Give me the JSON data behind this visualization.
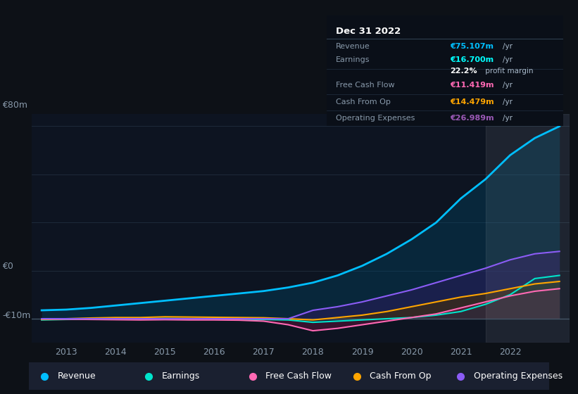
{
  "bg_color": "#0d1117",
  "chart_bg": "#0d1421",
  "grid_color": "#1e2a3a",
  "title_box": {
    "date": "Dec 31 2022",
    "rows": [
      {
        "label": "Revenue",
        "value": "€75.107m",
        "unit": "/yr",
        "color": "#00bfff"
      },
      {
        "label": "Earnings",
        "value": "€16.700m",
        "unit": "/yr",
        "color": "#00ffff"
      },
      {
        "label": "",
        "value": "22.2%",
        "unit": " profit margin",
        "color": "#ffffff"
      },
      {
        "label": "Free Cash Flow",
        "value": "€11.419m",
        "unit": "/yr",
        "color": "#ff69b4"
      },
      {
        "label": "Cash From Op",
        "value": "€14.479m",
        "unit": "/yr",
        "color": "#ffa500"
      },
      {
        "label": "Operating Expenses",
        "value": "€26.989m",
        "unit": "/yr",
        "color": "#9b59b6"
      }
    ]
  },
  "years": [
    2012.5,
    2013,
    2013.5,
    2014,
    2014.5,
    2015,
    2015.5,
    2016,
    2016.5,
    2017,
    2017.5,
    2018,
    2018.5,
    2019,
    2019.5,
    2020,
    2020.5,
    2021,
    2021.5,
    2022,
    2022.5,
    2023
  ],
  "revenue": [
    3.5,
    3.8,
    4.5,
    5.5,
    6.5,
    7.5,
    8.5,
    9.5,
    10.5,
    11.5,
    13,
    15,
    18,
    22,
    27,
    33,
    40,
    50,
    58,
    68,
    75.1,
    80
  ],
  "earnings": [
    -0.5,
    -0.3,
    -0.2,
    -0.1,
    0.0,
    0.1,
    0.0,
    -0.1,
    -0.2,
    -0.3,
    -0.5,
    -1.5,
    -1.0,
    -0.5,
    0.0,
    0.5,
    1.5,
    3.0,
    6.0,
    10.0,
    16.7,
    18
  ],
  "free_cf": [
    -0.3,
    -0.2,
    -0.3,
    -0.4,
    -0.5,
    -0.4,
    -0.5,
    -0.5,
    -0.6,
    -1.0,
    -2.5,
    -5.0,
    -4.0,
    -2.5,
    -1.0,
    0.5,
    2.0,
    4.5,
    7.0,
    9.5,
    11.419,
    12.5
  ],
  "cash_from_op": [
    -0.2,
    0.0,
    0.3,
    0.5,
    0.5,
    0.8,
    0.7,
    0.6,
    0.5,
    0.4,
    0.0,
    -0.5,
    0.5,
    1.5,
    3.0,
    5.0,
    7.0,
    9.0,
    10.5,
    12.5,
    14.479,
    15.5
  ],
  "op_expenses": [
    0.0,
    0.0,
    0.0,
    0.0,
    0.0,
    0.0,
    0.0,
    0.0,
    0.0,
    0.0,
    0.0,
    3.5,
    5.0,
    7.0,
    9.5,
    12.0,
    15.0,
    18.0,
    21.0,
    24.5,
    26.989,
    28
  ],
  "revenue_color": "#00bfff",
  "earnings_color": "#00e5cc",
  "free_cf_color": "#ff69b4",
  "cash_op_color": "#ffa500",
  "op_exp_color": "#8b5cf6",
  "revenue_fill": "#004d6e",
  "earnings_fill": "#004040",
  "free_cf_fill": "#6b1040",
  "cash_op_fill": "#4d3000",
  "op_exp_fill": "#2d1b5e",
  "ylim": [
    -10,
    85
  ],
  "yticks": [
    -10,
    0,
    20,
    40,
    60,
    80
  ],
  "ytick_labels": [
    "-€10m",
    "€0",
    "",
    "",
    "",
    "€80m"
  ],
  "xlim": [
    2012.3,
    2023.2
  ],
  "xticks": [
    2013,
    2014,
    2015,
    2016,
    2017,
    2018,
    2019,
    2020,
    2021,
    2022
  ],
  "legend": [
    {
      "label": "Revenue",
      "color": "#00bfff"
    },
    {
      "label": "Earnings",
      "color": "#00e5cc"
    },
    {
      "label": "Free Cash Flow",
      "color": "#ff69b4"
    },
    {
      "label": "Cash From Op",
      "color": "#ffa500"
    },
    {
      "label": "Operating Expenses",
      "color": "#8b5cf6"
    }
  ],
  "highlight_x_start": 2021.5,
  "highlight_x_end": 2023.2
}
